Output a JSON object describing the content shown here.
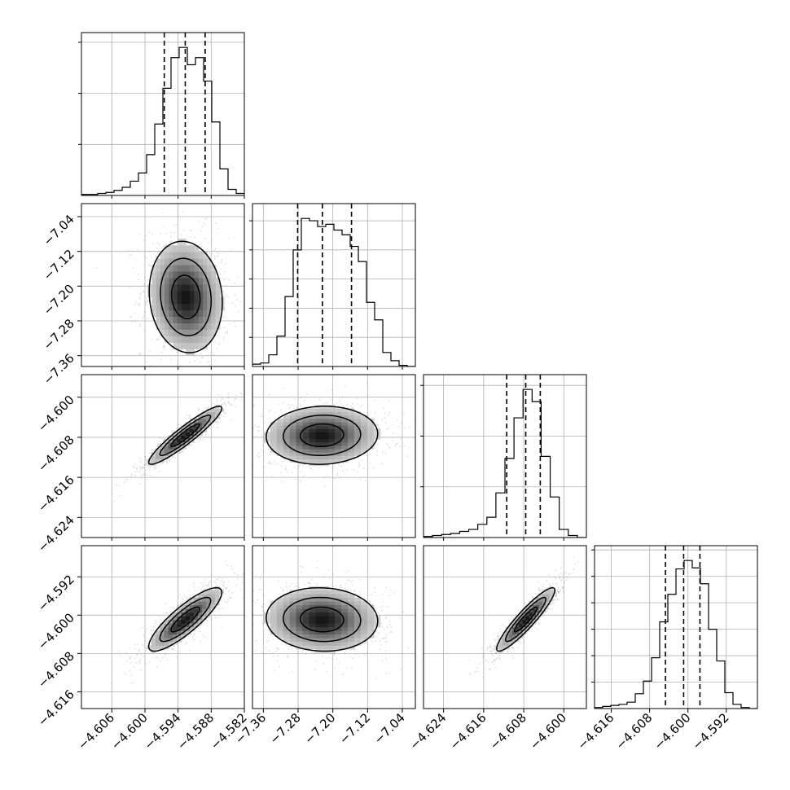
{
  "chart_data": {
    "type": "corner",
    "grid": true,
    "colors": {
      "line": "#000000",
      "grid": "#b0b0b0",
      "points": "#555555"
    },
    "parameters": [
      {
        "range": [
          -4.6115,
          -4.582
        ],
        "ticks": [
          -4.606,
          -4.6,
          -4.594,
          -4.588,
          -4.582
        ],
        "tick_labels": [
          "−4.606",
          "−4.600",
          "−4.594",
          "−4.588",
          "−4.582"
        ]
      },
      {
        "range": [
          -7.385,
          -7.01
        ],
        "ticks": [
          -7.36,
          -7.28,
          -7.2,
          -7.12,
          -7.04
        ],
        "tick_labels": [
          "−7.36",
          "−7.28",
          "−7.20",
          "−7.12",
          "−7.04"
        ]
      },
      {
        "range": [
          -4.628,
          -4.5955
        ],
        "ticks": [
          -4.624,
          -4.616,
          -4.608,
          -4.6
        ],
        "tick_labels": [
          "−4.624",
          "−4.616",
          "−4.608",
          "−4.600"
        ]
      },
      {
        "range": [
          -4.6195,
          -4.5855
        ],
        "ticks": [
          -4.616,
          -4.608,
          -4.6,
          -4.592
        ],
        "tick_labels": [
          "−4.616",
          "−4.608",
          "−4.600",
          "−4.592"
        ]
      }
    ],
    "histograms": [
      {
        "edges_range": [
          -4.6115,
          -4.582
        ],
        "counts": [
          1,
          1,
          2,
          3,
          5,
          8,
          14,
          22,
          40,
          70,
          105,
          135,
          145,
          128,
          135,
          112,
          72,
          26,
          6,
          2
        ],
        "quantiles": [
          -4.5965,
          -4.5927,
          -4.5891
        ]
      },
      {
        "edges_range": [
          -7.385,
          -7.01
        ],
        "counts": [
          2,
          3,
          10,
          26,
          60,
          100,
          127,
          125,
          120,
          122,
          117,
          113,
          103,
          90,
          55,
          40,
          12,
          5,
          1,
          0
        ],
        "quantiles": [
          -7.281,
          -7.224,
          -7.157
        ]
      },
      {
        "edges_range": [
          -4.628,
          -4.5955
        ],
        "counts": [
          1,
          2,
          3,
          4,
          6,
          8,
          13,
          20,
          44,
          78,
          118,
          146,
          134,
          80,
          40,
          8,
          2,
          0
        ],
        "quantiles": [
          -4.6114,
          -4.6076,
          -4.6047
        ]
      },
      {
        "edges_range": [
          -4.6195,
          -4.5855
        ],
        "counts": [
          1,
          2,
          3,
          4,
          6,
          14,
          26,
          48,
          82,
          108,
          132,
          140,
          133,
          118,
          75,
          45,
          15,
          4,
          1,
          0
        ],
        "quantiles": [
          -4.6047,
          -4.6009,
          -4.5975
        ]
      }
    ],
    "pairs": [
      {
        "x": 0,
        "y": 1,
        "cx": -4.5926,
        "cy": -7.225,
        "sx": 0.0032,
        "sy": 0.062,
        "rho": -0.1
      },
      {
        "x": 0,
        "y": 2,
        "cx": -4.5927,
        "cy": -4.6076,
        "sx": 0.0032,
        "sy": 0.0028,
        "rho": 0.93
      },
      {
        "x": 1,
        "y": 2,
        "cx": -7.225,
        "cy": -4.6076,
        "sx": 0.062,
        "sy": 0.0028,
        "rho": 0.05
      },
      {
        "x": 0,
        "y": 3,
        "cx": -4.5927,
        "cy": -4.6009,
        "sx": 0.0032,
        "sy": 0.0032,
        "rho": 0.85
      },
      {
        "x": 1,
        "y": 3,
        "cx": -7.225,
        "cy": -4.6009,
        "sx": 0.062,
        "sy": 0.0032,
        "rho": -0.05
      },
      {
        "x": 2,
        "y": 3,
        "cx": -4.6076,
        "cy": -4.6009,
        "sx": 0.0028,
        "sy": 0.0032,
        "rho": 0.92
      }
    ]
  }
}
